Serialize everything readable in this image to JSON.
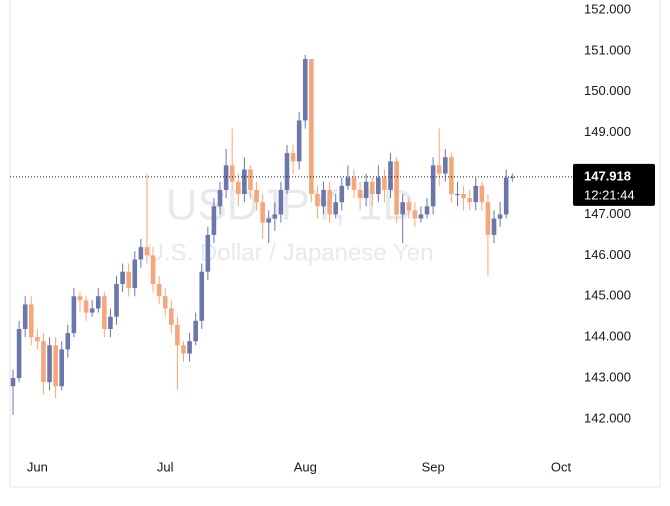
{
  "chart_data": {
    "type": "candlestick",
    "title": "USDJPY, 1D",
    "subtitle": "U.S. Dollar / Japanese Yen",
    "categories": [
      null,
      null,
      null,
      null,
      "Jun",
      null,
      null,
      null,
      null,
      null,
      null,
      null,
      null,
      null,
      null,
      null,
      null,
      null,
      null,
      null,
      null,
      null,
      null,
      null,
      null,
      "Jul",
      null,
      null,
      null,
      null,
      null,
      null,
      null,
      null,
      null,
      null,
      null,
      null,
      null,
      null,
      null,
      null,
      null,
      null,
      null,
      null,
      null,
      null,
      "Aug",
      null,
      null,
      null,
      null,
      null,
      null,
      null,
      null,
      null,
      null,
      null,
      null,
      null,
      null,
      null,
      null,
      null,
      null,
      null,
      null,
      "Sep",
      null,
      null,
      null,
      null,
      null,
      null,
      null,
      null,
      null,
      null,
      null,
      null,
      null,
      null,
      null,
      null,
      null,
      null,
      null,
      null,
      "Oct"
    ],
    "open": [
      142.8,
      143.0,
      144.2,
      144.8,
      144.0,
      143.9,
      142.9,
      143.8,
      142.8,
      143.7,
      144.1,
      145.0,
      144.9,
      144.6,
      144.7,
      145.0,
      144.2,
      144.5,
      145.3,
      145.6,
      145.2,
      145.9,
      146.2,
      146.0,
      145.3,
      145.0,
      144.7,
      144.3,
      143.8,
      143.6,
      143.9,
      144.4,
      145.6,
      146.5,
      147.2,
      147.6,
      148.2,
      147.8,
      147.5,
      148.1,
      147.6,
      147.3,
      146.8,
      146.9,
      147.0,
      147.6,
      148.5,
      148.3,
      149.3,
      150.8,
      147.5,
      147.2,
      147.6,
      147.0,
      147.3,
      147.7,
      147.9,
      147.6,
      147.4,
      147.8,
      147.5,
      147.9,
      147.6,
      148.3,
      147.0,
      147.3,
      147.1,
      146.9,
      147.0,
      147.2,
      148.2,
      148.0,
      148.4,
      147.5,
      147.5,
      147.4,
      147.3,
      147.7,
      147.3,
      146.5,
      146.9,
      147.0,
      147.9,
      null,
      null,
      null,
      null,
      null,
      null,
      null,
      null
    ],
    "high": [
      143.2,
      144.4,
      145.0,
      145.0,
      144.2,
      144.1,
      144.0,
      144.0,
      143.9,
      144.3,
      145.2,
      145.1,
      145.0,
      144.9,
      145.2,
      145.1,
      144.7,
      145.5,
      145.8,
      145.8,
      146.1,
      146.4,
      148.0,
      146.2,
      145.5,
      145.2,
      144.9,
      144.5,
      143.9,
      144.1,
      144.6,
      145.8,
      146.7,
      147.4,
      147.8,
      148.6,
      149.1,
      148.0,
      148.4,
      148.2,
      147.8,
      147.5,
      147.1,
      147.3,
      147.8,
      148.7,
      148.7,
      149.5,
      150.9,
      150.8,
      147.7,
      147.8,
      147.8,
      147.5,
      147.9,
      148.2,
      148.1,
      147.8,
      148.0,
      147.9,
      148.2,
      148.1,
      148.5,
      148.4,
      147.5,
      147.4,
      147.3,
      147.2,
      147.4,
      148.4,
      149.1,
      148.6,
      148.5,
      147.8,
      147.7,
      147.6,
      147.9,
      147.8,
      147.5,
      147.1,
      147.3,
      148.1,
      148.0,
      null,
      null,
      null,
      null,
      null,
      null,
      null,
      null
    ],
    "low": [
      142.1,
      142.9,
      144.0,
      143.8,
      143.7,
      142.6,
      142.7,
      142.5,
      142.7,
      143.5,
      144.0,
      144.6,
      144.4,
      144.5,
      144.6,
      144.0,
      144.0,
      144.3,
      145.1,
      145.0,
      145.0,
      145.7,
      145.8,
      145.1,
      144.8,
      144.5,
      144.1,
      142.7,
      143.4,
      143.4,
      143.8,
      144.2,
      145.4,
      146.3,
      147.0,
      147.4,
      147.6,
      147.2,
      147.3,
      147.4,
      147.1,
      146.4,
      146.3,
      146.6,
      146.8,
      147.5,
      148.0,
      148.1,
      149.1,
      147.3,
      146.9,
      147.0,
      146.8,
      146.9,
      147.1,
      147.6,
      147.4,
      147.1,
      147.2,
      147.2,
      147.3,
      147.3,
      147.4,
      146.8,
      146.3,
      146.9,
      146.7,
      146.8,
      146.9,
      147.0,
      147.7,
      147.8,
      147.3,
      147.2,
      147.1,
      147.1,
      147.1,
      147.1,
      145.5,
      146.3,
      146.7,
      146.9,
      147.8,
      null,
      null,
      null,
      null,
      null,
      null,
      null,
      null
    ],
    "close": [
      143.0,
      144.2,
      144.8,
      144.0,
      143.9,
      142.9,
      143.8,
      142.8,
      143.7,
      144.1,
      145.0,
      144.9,
      144.6,
      144.7,
      145.0,
      144.2,
      144.5,
      145.3,
      145.6,
      145.2,
      145.9,
      146.2,
      146.0,
      145.3,
      145.0,
      144.7,
      144.3,
      143.8,
      143.6,
      143.9,
      144.4,
      145.6,
      146.5,
      147.2,
      147.6,
      148.2,
      147.8,
      147.5,
      148.1,
      147.6,
      147.3,
      146.8,
      146.9,
      147.0,
      147.6,
      148.5,
      148.3,
      149.3,
      150.8,
      147.5,
      147.2,
      147.6,
      147.0,
      147.3,
      147.7,
      147.9,
      147.6,
      147.4,
      147.8,
      147.5,
      147.9,
      147.6,
      148.3,
      147.0,
      147.3,
      147.1,
      146.9,
      147.0,
      147.2,
      148.2,
      148.0,
      148.4,
      147.5,
      147.5,
      147.4,
      147.3,
      147.7,
      147.3,
      146.5,
      146.9,
      147.0,
      147.9,
      147.918,
      null,
      null,
      null,
      null,
      null,
      null,
      null,
      null
    ],
    "up_color": "#6b76aa",
    "down_color": "#f6a779",
    "ylim": [
      141.24,
      152.0
    ],
    "yticks": [
      {
        "value": 142,
        "label": "142.000"
      },
      {
        "value": 143,
        "label": "143.000"
      },
      {
        "value": 144,
        "label": "144.000"
      },
      {
        "value": 145,
        "label": "145.000"
      },
      {
        "value": 146,
        "label": "146.000"
      },
      {
        "value": 147,
        "label": "147.000"
      },
      {
        "value": 148,
        "label": "148.000"
      },
      {
        "value": 149,
        "label": "149.000"
      },
      {
        "value": 150,
        "label": "150.000"
      },
      {
        "value": 151,
        "label": "151.000"
      },
      {
        "value": 152,
        "label": "152.000"
      }
    ],
    "last_price": {
      "value": 147.918,
      "label": "147.918"
    },
    "countdown": "12:21:44"
  }
}
